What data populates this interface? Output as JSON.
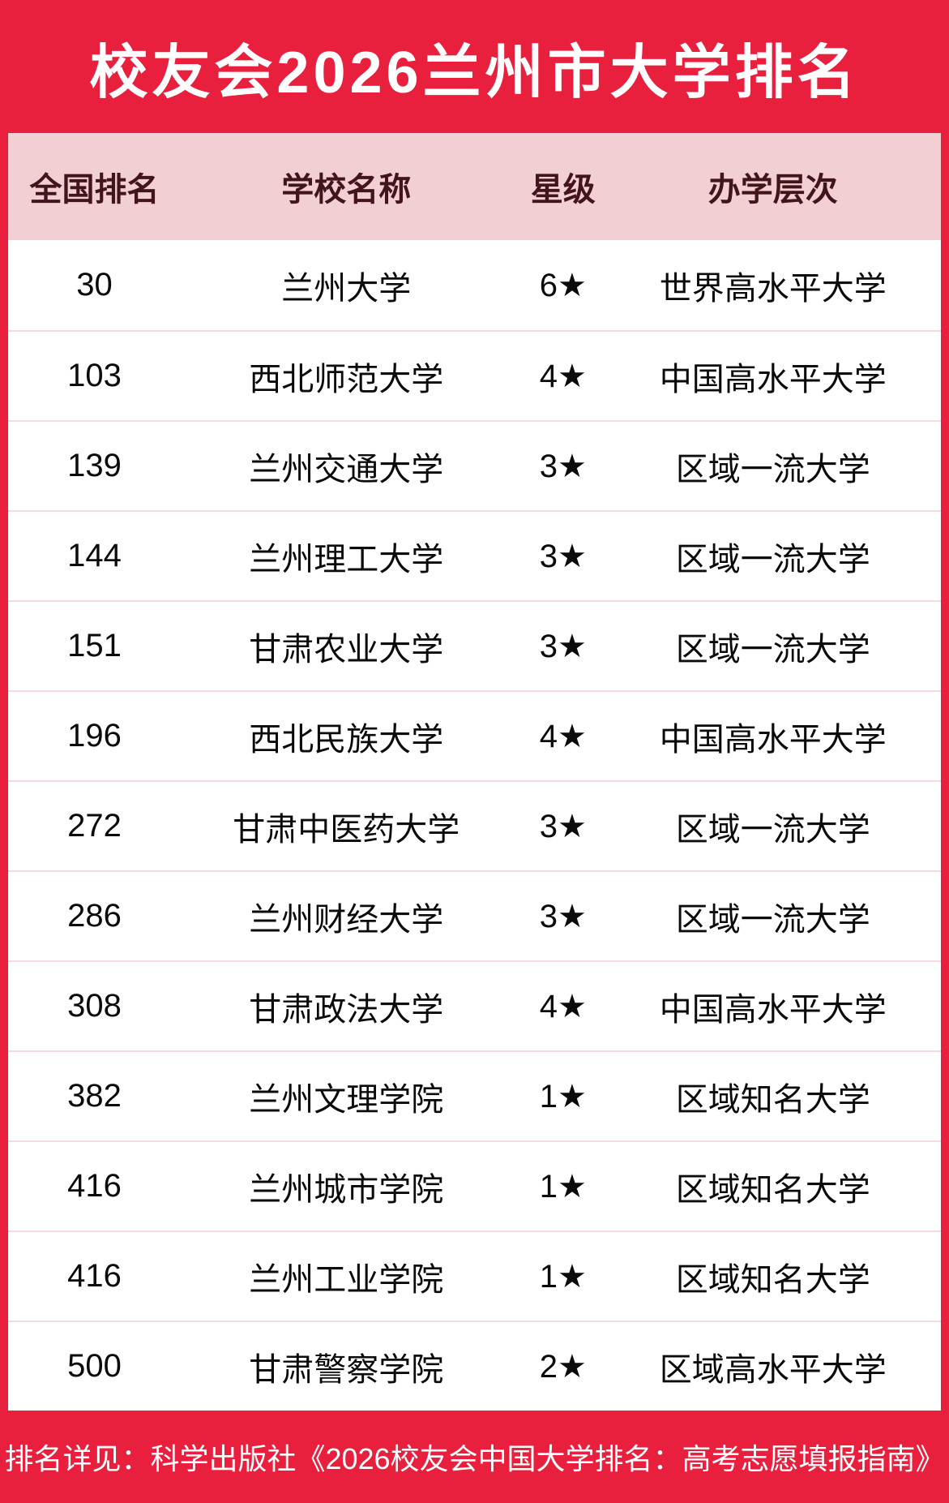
{
  "title": "校友会2026兰州市大学排名",
  "colors": {
    "accent_red": "#e8203e",
    "header_pink": "#f2cfd2",
    "header_text_maroon": "#42151a",
    "row_divider_pink": "#f7dadd",
    "body_text": "#0b0b0b",
    "title_text": "#ffffff"
  },
  "table": {
    "columns": [
      "全国排名",
      "学校名称",
      "星级",
      "办学层次"
    ],
    "rows": [
      {
        "rank": "30",
        "name": "兰州大学",
        "stars": "6★",
        "level": "世界高水平大学"
      },
      {
        "rank": "103",
        "name": "西北师范大学",
        "stars": "4★",
        "level": "中国高水平大学"
      },
      {
        "rank": "139",
        "name": "兰州交通大学",
        "stars": "3★",
        "level": "区域一流大学"
      },
      {
        "rank": "144",
        "name": "兰州理工大学",
        "stars": "3★",
        "level": "区域一流大学"
      },
      {
        "rank": "151",
        "name": "甘肃农业大学",
        "stars": "3★",
        "level": "区域一流大学"
      },
      {
        "rank": "196",
        "name": "西北民族大学",
        "stars": "4★",
        "level": "中国高水平大学"
      },
      {
        "rank": "272",
        "name": "甘肃中医药大学",
        "stars": "3★",
        "level": "区域一流大学"
      },
      {
        "rank": "286",
        "name": "兰州财经大学",
        "stars": "3★",
        "level": "区域一流大学"
      },
      {
        "rank": "308",
        "name": "甘肃政法大学",
        "stars": "4★",
        "level": "中国高水平大学"
      },
      {
        "rank": "382",
        "name": "兰州文理学院",
        "stars": "1★",
        "level": "区域知名大学"
      },
      {
        "rank": "416",
        "name": "兰州城市学院",
        "stars": "1★",
        "level": "区域知名大学"
      },
      {
        "rank": "416",
        "name": "兰州工业学院",
        "stars": "1★",
        "level": "区域知名大学"
      },
      {
        "rank": "500",
        "name": "甘肃警察学院",
        "stars": "2★",
        "level": "区域高水平大学"
      }
    ]
  },
  "footer": {
    "note": "排名详见：科学出版社《2026校友会中国大学排名：高考志愿填报指南》"
  }
}
